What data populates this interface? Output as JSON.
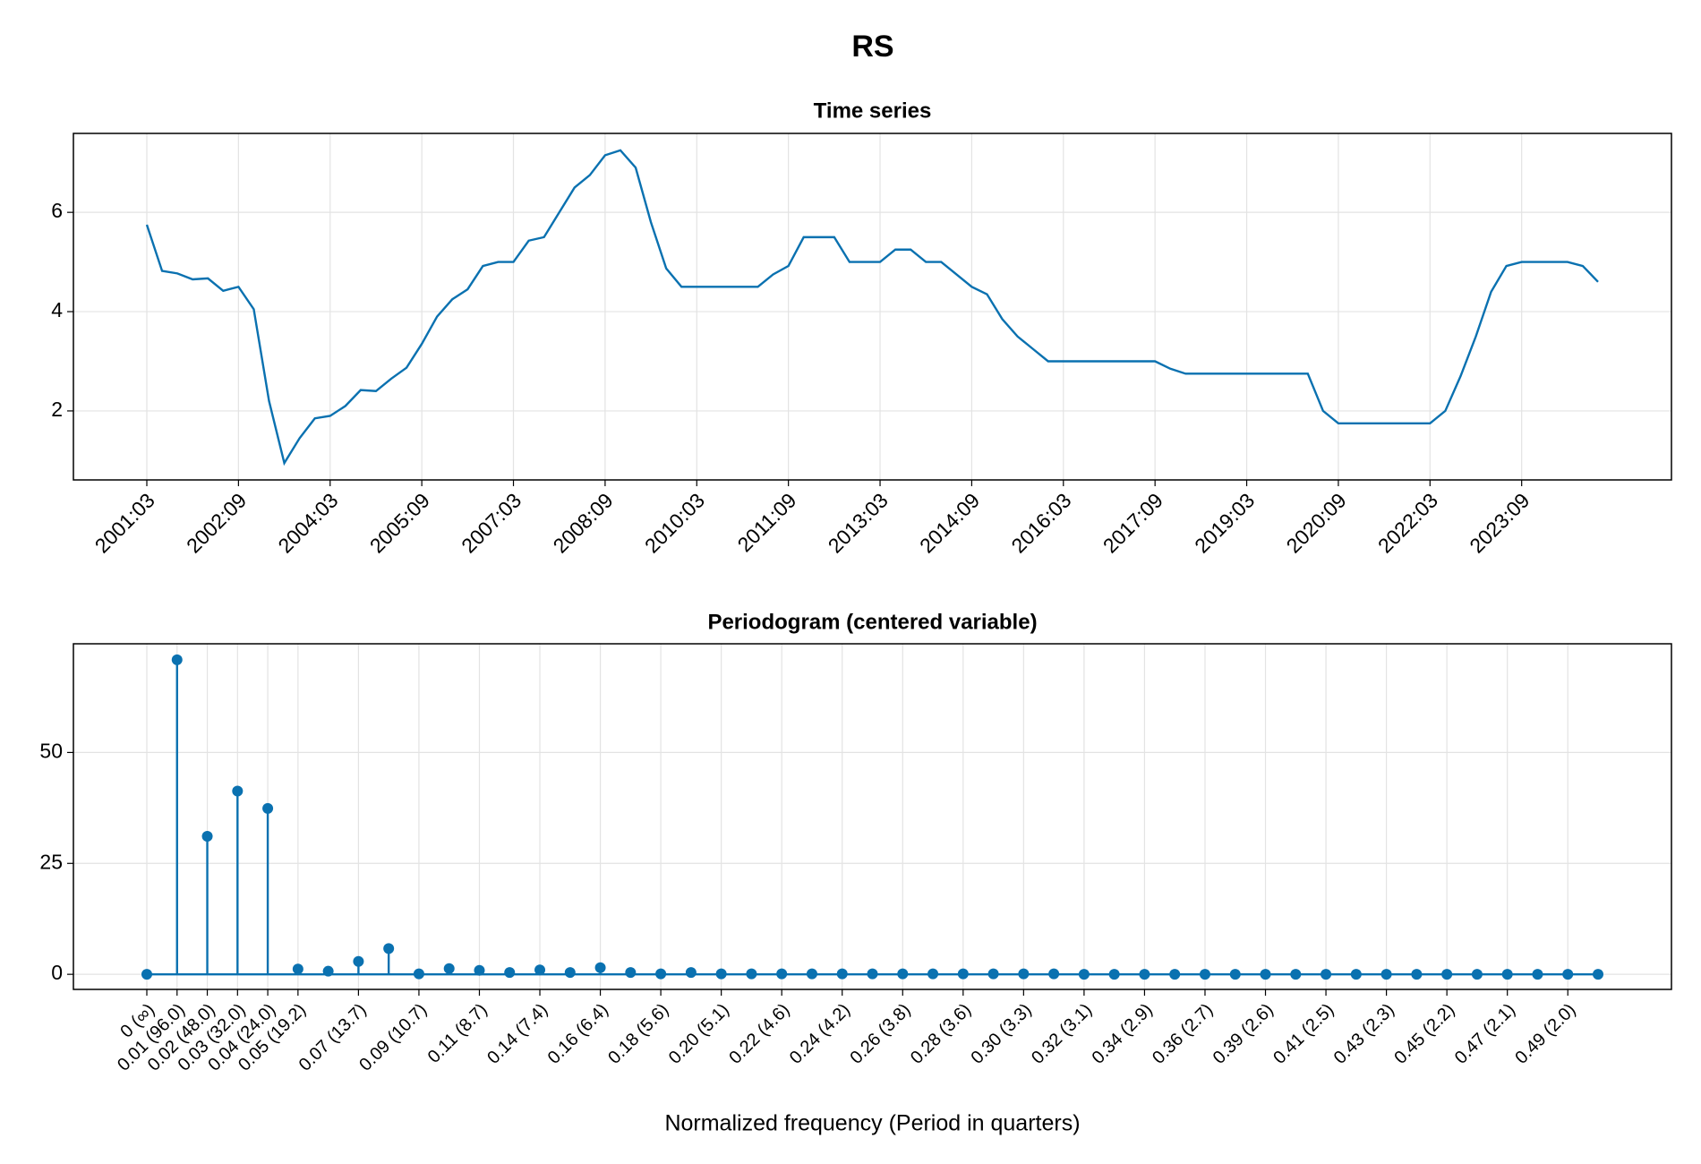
{
  "title": "RS",
  "chart_data": [
    {
      "type": "line",
      "title": "Time series",
      "color": "#0a71b0",
      "grid": true,
      "categories": [
        "2001:03",
        null,
        null,
        null,
        null,
        null,
        "2002:09",
        null,
        null,
        null,
        null,
        null,
        "2004:03",
        null,
        null,
        null,
        null,
        null,
        "2005:09",
        null,
        null,
        null,
        null,
        null,
        "2007:03",
        null,
        null,
        null,
        null,
        null,
        "2008:09",
        null,
        null,
        null,
        null,
        null,
        "2010:03",
        null,
        null,
        null,
        null,
        null,
        "2011:09",
        null,
        null,
        null,
        null,
        null,
        "2013:03",
        null,
        null,
        null,
        null,
        null,
        "2014:09",
        null,
        null,
        null,
        null,
        null,
        "2016:03",
        null,
        null,
        null,
        null,
        null,
        "2017:09",
        null,
        null,
        null,
        null,
        null,
        "2019:03",
        null,
        null,
        null,
        null,
        null,
        "2020:09",
        null,
        null,
        null,
        null,
        null,
        "2022:03",
        null,
        null,
        null,
        null,
        null,
        "2023:09",
        null,
        null,
        null,
        null,
        null
      ],
      "values": [
        5.75,
        4.82,
        4.77,
        4.65,
        4.67,
        4.42,
        4.5,
        4.05,
        2.2,
        0.95,
        1.45,
        1.85,
        1.9,
        2.1,
        2.42,
        2.4,
        2.65,
        2.87,
        3.35,
        3.9,
        4.25,
        4.45,
        4.92,
        5.0,
        5.0,
        5.43,
        5.5,
        6.0,
        6.5,
        6.75,
        7.15,
        7.25,
        6.9,
        5.8,
        4.87,
        4.5,
        4.5,
        4.5,
        4.5,
        4.5,
        4.5,
        4.75,
        4.92,
        5.5,
        5.5,
        5.5,
        5.0,
        5.0,
        5.0,
        5.25,
        5.25,
        5.0,
        5.0,
        4.75,
        4.5,
        4.35,
        3.85,
        3.5,
        3.25,
        3.0,
        3.0,
        3.0,
        3.0,
        3.0,
        3.0,
        3.0,
        3.0,
        2.85,
        2.75,
        2.75,
        2.75,
        2.75,
        2.75,
        2.75,
        2.75,
        2.75,
        2.75,
        2.0,
        1.75,
        1.75,
        1.75,
        1.75,
        1.75,
        1.75,
        1.75,
        2.0,
        2.7,
        3.5,
        4.4,
        4.92,
        5.0,
        5.0,
        5.0,
        5.0,
        4.92,
        4.6
      ],
      "ylim": [
        0.61,
        7.59
      ],
      "yticks": [
        2,
        4,
        6
      ]
    },
    {
      "type": "stem",
      "title": "Periodogram (centered variable)",
      "xlabel": "Normalized frequency (Period in quarters)",
      "color": "#0a71b0",
      "grid": true,
      "categories": [
        "0 (∞)",
        "0.01 (96.0)",
        "0.02 (48.0)",
        "0.03 (32.0)",
        "0.04 (24.0)",
        "0.05 (19.2)",
        null,
        "0.07 (13.7)",
        null,
        "0.09 (10.7)",
        null,
        "0.11 (8.7)",
        null,
        "0.14 (7.4)",
        null,
        "0.16 (6.4)",
        null,
        "0.18 (5.6)",
        null,
        "0.20 (5.1)",
        null,
        "0.22 (4.6)",
        null,
        "0.24 (4.2)",
        null,
        "0.26 (3.8)",
        null,
        "0.28 (3.6)",
        null,
        "0.30 (3.3)",
        null,
        "0.32 (3.1)",
        null,
        "0.34 (2.9)",
        null,
        "0.36 (2.7)",
        null,
        "0.39 (2.6)",
        null,
        "0.41 (2.5)",
        null,
        "0.43 (2.3)",
        null,
        "0.45 (2.2)",
        null,
        "0.47 (2.1)",
        null,
        "0.49 (2.0)",
        null
      ],
      "values": [
        0,
        70.9,
        31.1,
        41.3,
        37.4,
        1.2,
        0.7,
        2.9,
        5.8,
        0.1,
        1.3,
        0.9,
        0.4,
        1.0,
        0.4,
        1.5,
        0.4,
        0.1,
        0.4,
        0.1,
        0.1,
        0.1,
        0.1,
        0.1,
        0.1,
        0.1,
        0.1,
        0.1,
        0.1,
        0.1,
        0.1,
        0,
        0,
        0,
        0,
        0,
        0,
        0,
        0,
        0,
        0,
        0,
        0,
        0,
        0,
        0,
        0,
        0,
        0
      ],
      "ylim": [
        -3.4,
        74.5
      ],
      "yticks": [
        0,
        25,
        50
      ]
    }
  ]
}
